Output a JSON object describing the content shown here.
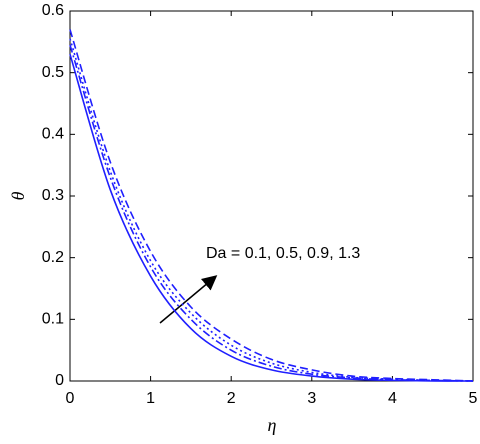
{
  "chart_data": {
    "type": "line",
    "x_label": "η",
    "y_label": "θ",
    "annotation": "Da = 0.1, 0.5, 0.9, 1.3",
    "x": [
      0,
      0.5,
      1,
      1.5,
      2,
      2.5,
      3,
      3.5,
      4,
      4.5,
      5
    ],
    "series": [
      {
        "color": "#1f1fff",
        "dash": "solid",
        "values": [
          0.53,
          0.31,
          0.17,
          0.085,
          0.04,
          0.018,
          0.008,
          0.003,
          0.001,
          0,
          0
        ]
      },
      {
        "color": "#1f1fff",
        "dash": "dashdot",
        "values": [
          0.545,
          0.33,
          0.185,
          0.1,
          0.05,
          0.024,
          0.011,
          0.005,
          0.002,
          0.001,
          0
        ]
      },
      {
        "color": "#1f1fff",
        "dash": "dotted",
        "values": [
          0.555,
          0.34,
          0.195,
          0.11,
          0.058,
          0.029,
          0.014,
          0.006,
          0.003,
          0.001,
          0
        ]
      },
      {
        "color": "#1f1fff",
        "dash": "dashed",
        "values": [
          0.57,
          0.355,
          0.21,
          0.12,
          0.068,
          0.035,
          0.018,
          0.008,
          0.004,
          0.002,
          0
        ]
      }
    ],
    "xlim": [
      0,
      5
    ],
    "xticks": [
      0,
      1,
      2,
      3,
      4,
      5
    ],
    "ylim": [
      0,
      0.6
    ],
    "yticks": [
      0,
      0.1,
      0.2,
      0.3,
      0.4,
      0.5,
      0.6
    ]
  }
}
